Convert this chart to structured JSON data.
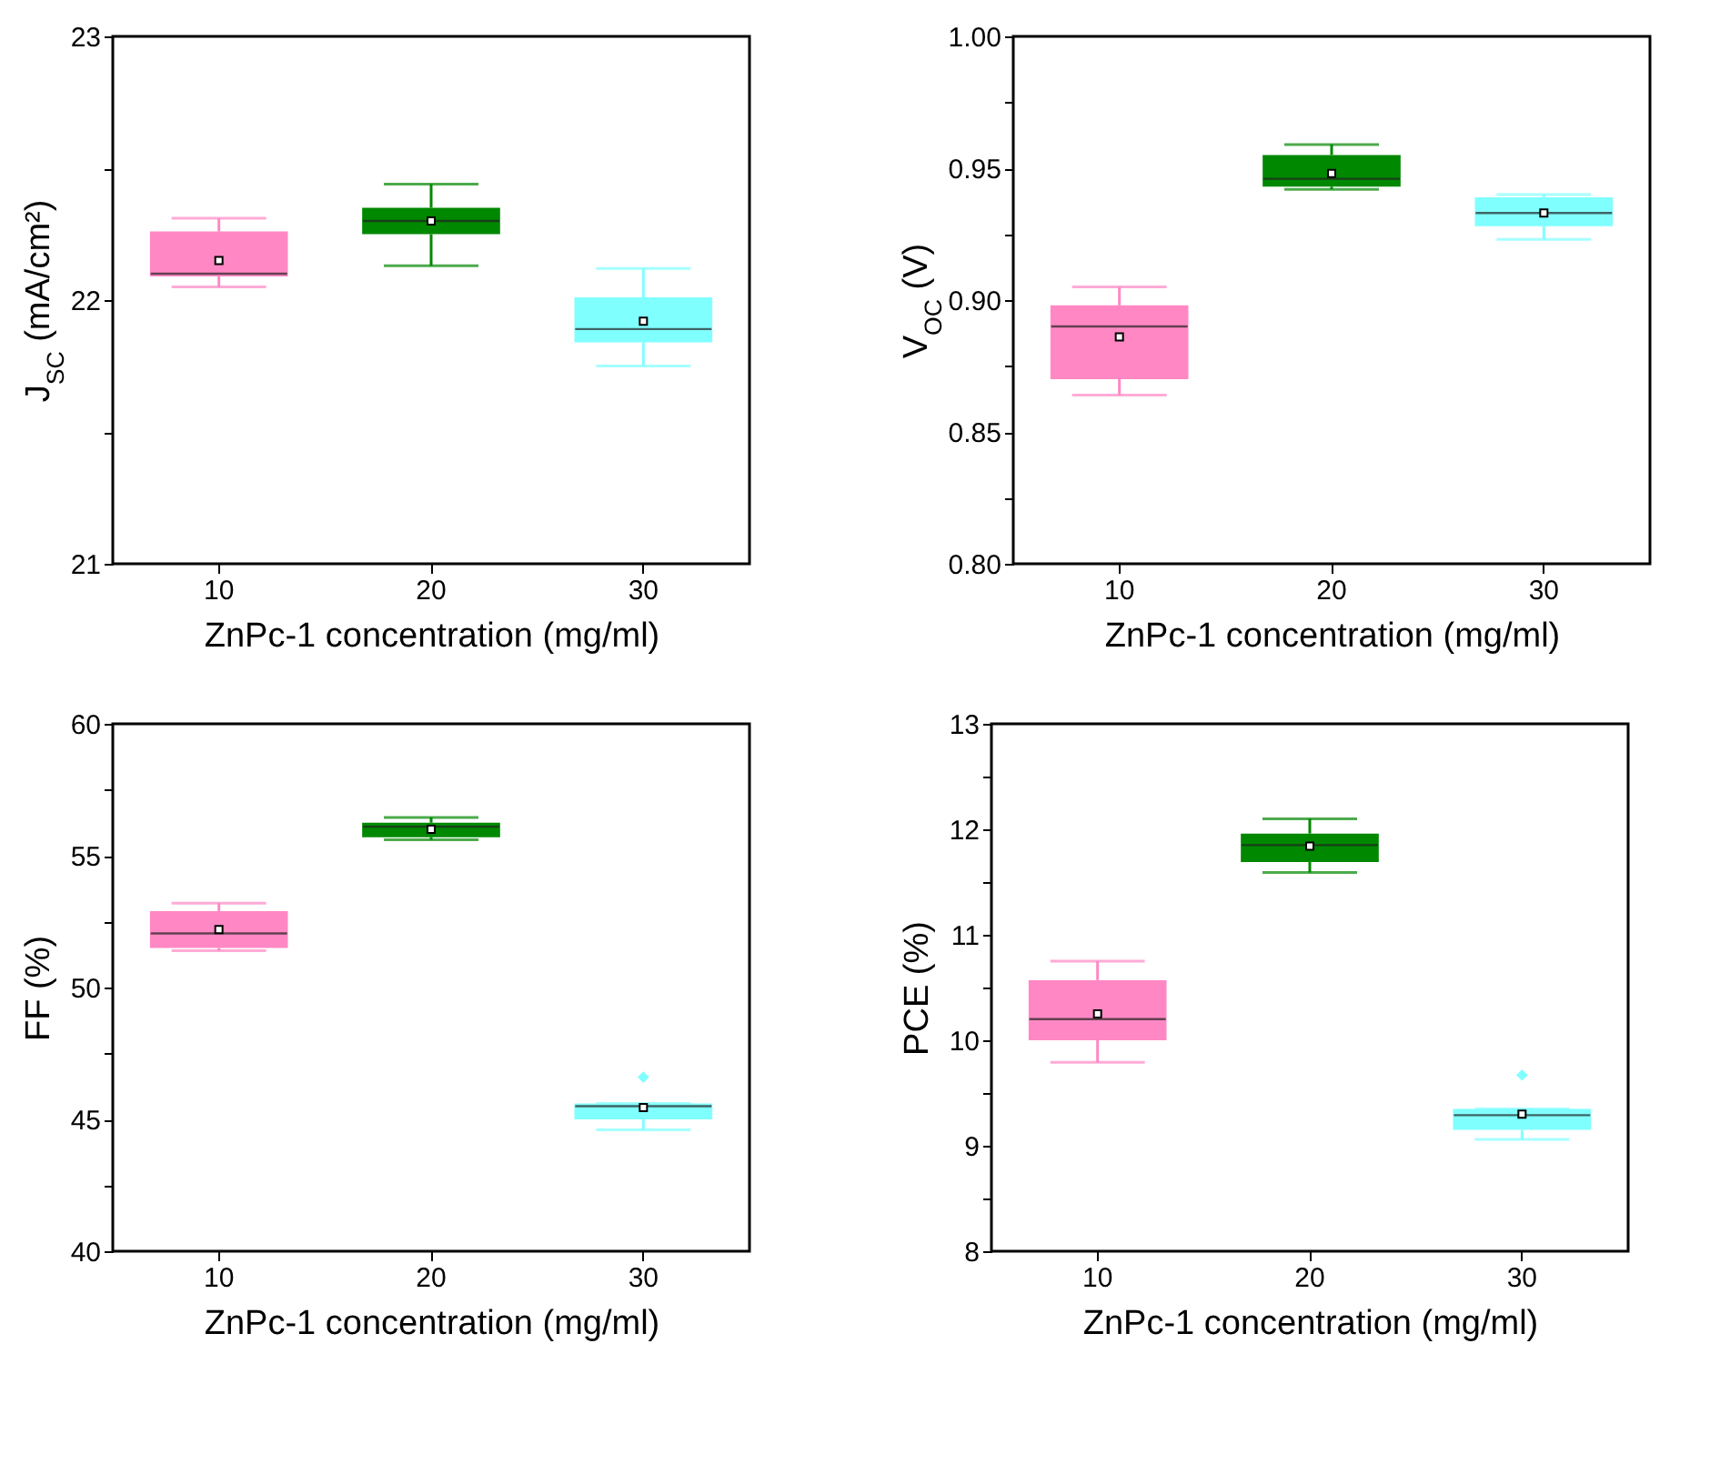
{
  "chart_data": [
    {
      "type": "box",
      "xlabel": "ZnPc-1 concentration (mg/ml)",
      "ylabel": "J$_{SC}$ (mA/cm²)",
      "categories": [
        "10",
        "20",
        "30"
      ],
      "colors": [
        "#ff88c4",
        "#008800",
        "#80ffff"
      ],
      "ylim": [
        21,
        23
      ],
      "yticks": [
        21,
        {
          "value": 21.5,
          "label": null
        },
        22,
        {
          "value": 22.5,
          "label": null
        },
        23
      ],
      "legend": false,
      "grid": false,
      "boxes": [
        {
          "low": 22.05,
          "q1": 22.09,
          "median": 22.1,
          "q3": 22.26,
          "high": 22.31,
          "mean": 22.15
        },
        {
          "low": 22.13,
          "q1": 22.25,
          "median": 22.3,
          "q3": 22.35,
          "high": 22.44,
          "mean": 22.3
        },
        {
          "low": 21.75,
          "q1": 21.84,
          "median": 21.89,
          "q3": 22.01,
          "high": 22.12,
          "mean": 21.92
        }
      ]
    },
    {
      "type": "box",
      "xlabel": "ZnPc-1 concentration (mg/ml)",
      "ylabel": "V$_{OC}$ (V)",
      "categories": [
        "10",
        "20",
        "30"
      ],
      "colors": [
        "#ff88c4",
        "#008800",
        "#80ffff"
      ],
      "ylim": [
        0.8,
        1.0
      ],
      "yticks": [
        {
          "value": 0.8,
          "label": "0.80"
        },
        {
          "value": 0.825,
          "label": null
        },
        0.85,
        {
          "value": 0.875,
          "label": null
        },
        {
          "value": 0.9,
          "label": "0.90"
        },
        {
          "value": 0.925,
          "label": null
        },
        0.95,
        {
          "value": 0.975,
          "label": null
        },
        {
          "value": 1.0,
          "label": "1.00"
        }
      ],
      "legend": false,
      "grid": false,
      "boxes": [
        {
          "low": 0.864,
          "q1": 0.87,
          "median": 0.89,
          "q3": 0.898,
          "high": 0.905,
          "mean": 0.886
        },
        {
          "low": 0.942,
          "q1": 0.943,
          "median": 0.946,
          "q3": 0.955,
          "high": 0.959,
          "mean": 0.948
        },
        {
          "low": 0.923,
          "q1": 0.928,
          "median": 0.933,
          "q3": 0.939,
          "high": 0.94,
          "mean": 0.933
        }
      ]
    },
    {
      "type": "box",
      "xlabel": "ZnPc-1 concentration (mg/ml)",
      "ylabel": "FF (%)",
      "categories": [
        "10",
        "20",
        "30"
      ],
      "colors": [
        "#ff88c4",
        "#008800",
        "#80ffff"
      ],
      "ylim": [
        40,
        60
      ],
      "yticks": [
        40,
        {
          "value": 42.5,
          "label": null
        },
        45,
        {
          "value": 47.5,
          "label": null
        },
        50,
        {
          "value": 52.5,
          "label": null
        },
        55,
        {
          "value": 57.5,
          "label": null
        },
        60
      ],
      "legend": false,
      "grid": false,
      "boxes": [
        {
          "low": 51.4,
          "q1": 51.5,
          "median": 52.05,
          "q3": 52.9,
          "high": 53.2,
          "mean": 52.2
        },
        {
          "low": 55.6,
          "q1": 55.7,
          "median": 56.1,
          "q3": 56.25,
          "high": 56.45,
          "mean": 56.0
        },
        {
          "low": 44.6,
          "q1": 45.0,
          "median": 45.5,
          "q3": 45.6,
          "high": 45.6,
          "mean": 45.45,
          "outliers": [
            46.6
          ]
        }
      ]
    },
    {
      "type": "box",
      "xlabel": "ZnPc-1 concentration (mg/ml)",
      "ylabel": "PCE (%)",
      "categories": [
        "10",
        "20",
        "30"
      ],
      "colors": [
        "#ff88c4",
        "#008800",
        "#80ffff"
      ],
      "ylim": [
        8,
        13
      ],
      "yticks": [
        8,
        {
          "value": 8.5,
          "label": null
        },
        9,
        {
          "value": 9.5,
          "label": null
        },
        10,
        {
          "value": 10.5,
          "label": null
        },
        11,
        {
          "value": 11.5,
          "label": null
        },
        12,
        {
          "value": 12.5,
          "label": null
        },
        13
      ],
      "legend": false,
      "grid": false,
      "boxes": [
        {
          "low": 9.79,
          "q1": 10.0,
          "median": 10.2,
          "q3": 10.57,
          "high": 10.75,
          "mean": 10.25
        },
        {
          "low": 11.59,
          "q1": 11.69,
          "median": 11.85,
          "q3": 11.96,
          "high": 12.1,
          "mean": 11.84
        },
        {
          "low": 9.06,
          "q1": 9.15,
          "median": 9.29,
          "q3": 9.35,
          "high": 9.35,
          "mean": 9.3,
          "outliers": [
            9.67
          ]
        }
      ]
    }
  ]
}
